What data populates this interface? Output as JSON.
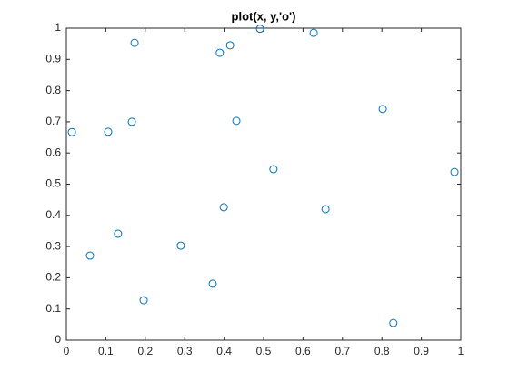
{
  "chart_data": {
    "type": "scatter",
    "title": "plot(x, y,'o')",
    "x": [
      0.014,
      0.06,
      0.106,
      0.131,
      0.166,
      0.173,
      0.196,
      0.29,
      0.371,
      0.389,
      0.399,
      0.415,
      0.431,
      0.491,
      0.525,
      0.627,
      0.657,
      0.802,
      0.829,
      0.984
    ],
    "series": [
      {
        "color": "#0072bd",
        "values": [
          0.667,
          0.271,
          0.668,
          0.341,
          0.7,
          0.953,
          0.128,
          0.303,
          0.181,
          0.921,
          0.426,
          0.945,
          0.703,
          0.998,
          0.548,
          0.985,
          0.42,
          0.741,
          0.055,
          0.539
        ]
      }
    ],
    "xlim": [
      0,
      1
    ],
    "ylim": [
      0,
      1
    ],
    "xticks": [
      0,
      0.1,
      0.2,
      0.3,
      0.4,
      0.5,
      0.6,
      0.7,
      0.8,
      0.9,
      1
    ],
    "yticks": [
      0,
      0.1,
      0.2,
      0.3,
      0.4,
      0.5,
      0.6,
      0.7,
      0.8,
      0.9,
      1
    ],
    "grid": false
  }
}
